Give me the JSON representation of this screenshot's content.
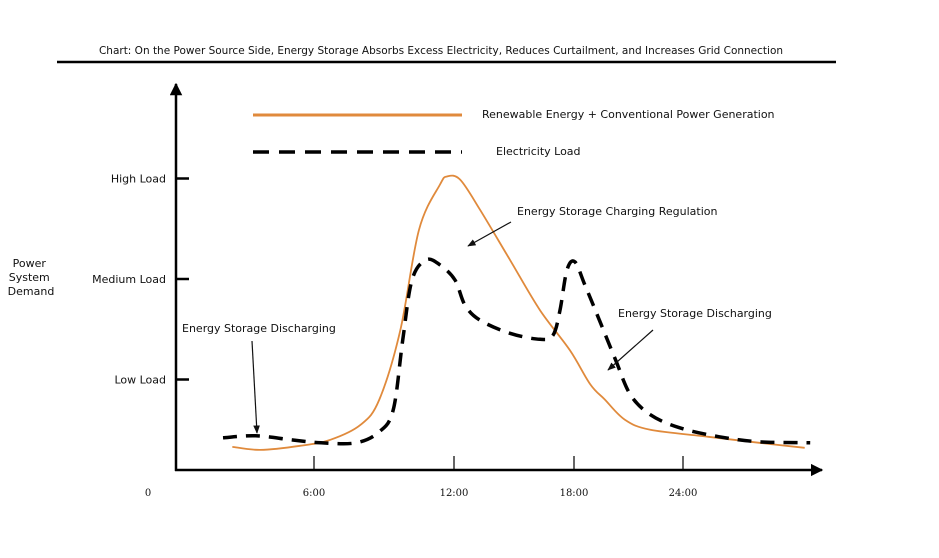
{
  "chart_data": {
    "type": "line",
    "title": "Chart: On the Power Source Side, Energy Storage Absorbs Excess Electricity, Reduces Curtailment, and Increases Grid Connection",
    "ylabel": [
      "Power",
      "System",
      "Demand"
    ],
    "xlabel": "",
    "x_ticks": [
      {
        "value": 0,
        "label": "0"
      },
      {
        "value": 6,
        "label": "6:00"
      },
      {
        "value": 12,
        "label": "12:00"
      },
      {
        "value": 18,
        "label": "18:00"
      },
      {
        "value": 24,
        "label": "24:00"
      }
    ],
    "y_ticks": [
      {
        "value": 1,
        "label": "Low Load"
      },
      {
        "value": 2,
        "label": "Medium Load"
      },
      {
        "value": 3,
        "label": "High Load"
      }
    ],
    "xlim": [
      0,
      31
    ],
    "ylim": [
      0.1,
      3.1
    ],
    "grid": false,
    "legend_placement": "top-center",
    "series": [
      {
        "name": "Renewable Energy + Conventional Power Generation",
        "color": "#e08a3c",
        "style": "solid",
        "x": [
          2.5,
          3.7,
          5.4,
          6.7,
          8.0,
          8.8,
          9.7,
          10.5,
          11.4,
          11.7,
          12.3,
          13.3,
          14.8,
          16.3,
          17.8,
          18.9,
          19.7,
          20.8,
          22.2,
          25.4,
          28.2,
          30.7
        ],
        "y": [
          0.33,
          0.3,
          0.34,
          0.4,
          0.55,
          0.8,
          1.49,
          2.49,
          2.94,
          3.02,
          2.99,
          2.69,
          2.19,
          1.69,
          1.29,
          0.95,
          0.8,
          0.6,
          0.5,
          0.43,
          0.37,
          0.32
        ]
      },
      {
        "name": "Electricity Load",
        "color": "#000000",
        "style": "dashed",
        "x": [
          2.1,
          3.5,
          5.0,
          6.3,
          7.8,
          8.8,
          9.4,
          9.8,
          10.2,
          10.8,
          11.4,
          12.05,
          12.55,
          13.3,
          14.8,
          16.3,
          16.95,
          17.3,
          17.65,
          18.05,
          18.6,
          19.4,
          20.3,
          21.1,
          22.2,
          23.8,
          26.0,
          28.2,
          31.0
        ],
        "y": [
          0.42,
          0.44,
          0.4,
          0.37,
          0.37,
          0.48,
          0.7,
          1.39,
          1.99,
          2.19,
          2.14,
          1.99,
          1.74,
          1.59,
          1.46,
          1.4,
          1.44,
          1.69,
          2.09,
          2.17,
          1.94,
          1.59,
          1.19,
          0.85,
          0.65,
          0.52,
          0.43,
          0.38,
          0.37
        ]
      }
    ],
    "annotations": [
      {
        "text": "Energy Storage Discharging",
        "target_x": 3.6,
        "target_y": 0.47
      },
      {
        "text": "Energy Storage Charging Regulation",
        "target_x": 12.7,
        "target_y": 2.33
      },
      {
        "text": "Energy Storage Discharging",
        "target_x": 19.5,
        "target_y": 1.09
      }
    ]
  }
}
